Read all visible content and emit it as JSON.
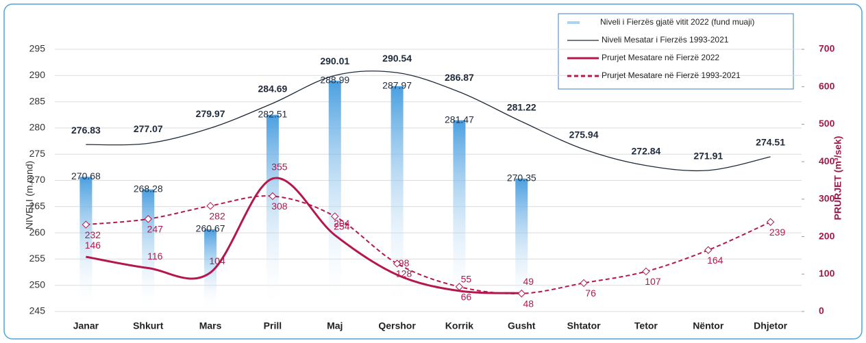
{
  "chart_data": {
    "type": "combo",
    "y_label": "NIVELI (m.mnd)",
    "y2_label": "PRURJET (m³/sek)",
    "categories": [
      "Janar",
      "Shkurt",
      "Mars",
      "Prill",
      "Maj",
      "Qershor",
      "Korrik",
      "Gusht",
      "Shtator",
      "Tetor",
      "Nëntor",
      "Dhjetor"
    ],
    "ylim": [
      245,
      295
    ],
    "yticks": [
      245,
      250,
      255,
      260,
      265,
      270,
      275,
      280,
      285,
      290,
      295
    ],
    "y2lim": [
      0,
      700
    ],
    "y2ticks": [
      0,
      100,
      200,
      300,
      400,
      500,
      600,
      700
    ],
    "grid": true,
    "series": [
      {
        "name": "Niveli i Fierzës gjatë vitit 2022 (fund muaji)",
        "kind": "bar",
        "color": "#5aa9e6",
        "values": [
          270.68,
          268.28,
          260.67,
          282.51,
          288.99,
          287.97,
          281.47,
          270.35,
          null,
          null,
          null,
          null
        ]
      },
      {
        "name": "Niveli Mesatar i Fierzës 1993-2021",
        "kind": "line",
        "color": "#1f2a3a",
        "values": [
          276.83,
          277.07,
          279.97,
          284.69,
          290.01,
          290.54,
          286.87,
          281.22,
          275.94,
          272.84,
          271.91,
          274.51
        ]
      },
      {
        "name": "Prurjet Mesatare në Fierzë 2022",
        "kind": "line",
        "axis": "y2",
        "color": "#b5164b",
        "values": [
          146,
          116,
          104,
          355,
          204,
          98,
          55,
          49,
          null,
          null,
          null,
          null
        ]
      },
      {
        "name": "Prurjet Mesatare në Fierzë 1993-2021",
        "kind": "dashed",
        "axis": "y2",
        "color": "#b5164b",
        "values": [
          232,
          247,
          282,
          308,
          254,
          128,
          66,
          48,
          76,
          107,
          164,
          239
        ]
      }
    ]
  }
}
